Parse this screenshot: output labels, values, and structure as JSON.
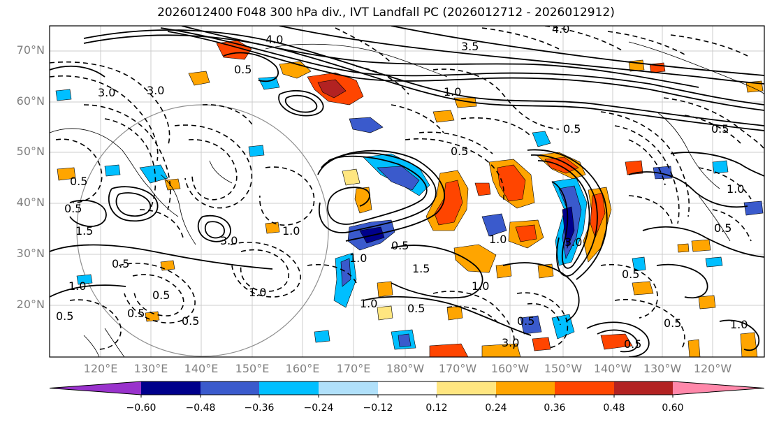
{
  "title": "2026012400 F048 300 hPa div., IVT Landfall PC (2026012712 - 2026012912)",
  "lat_ticks": [
    "70°N",
    "60°N",
    "50°N",
    "40°N",
    "30°N",
    "20°N"
  ],
  "lon_ticks": [
    "120°E",
    "130°E",
    "140°E",
    "150°E",
    "160°E",
    "170°E",
    "180°W",
    "170°W",
    "160°W",
    "150°W",
    "140°W",
    "130°W",
    "120°W"
  ],
  "colorbar": {
    "labels": [
      "−0.60",
      "−0.48",
      "−0.36",
      "−0.24",
      "−0.12",
      "0.12",
      "0.24",
      "0.36",
      "0.48",
      "0.60"
    ],
    "colors": [
      "#9932cc",
      "#00008b",
      "#3a5acc",
      "#00bfff",
      "#b0e0fa",
      "#ffffff",
      "#ffe680",
      "#ffa500",
      "#ff4500",
      "#b22222",
      "#ff88aa"
    ]
  },
  "contour_labels": [
    "4.0",
    "3.0",
    "3.5",
    "0.5",
    "1.0",
    "1.5",
    "3.0",
    "0.5",
    "0.5",
    "1.0",
    "0.5",
    "1.5",
    "1.0",
    "0.5",
    "3.0",
    "1.0",
    "0.5",
    "0.5",
    "1.0",
    "3.0",
    "0.5",
    "1.0",
    "0.5",
    "0.5",
    "0.5",
    "1.0",
    "3.0",
    "0.5",
    "0.5",
    "0.5",
    "1.0",
    "0.5",
    "0.5",
    "1.0",
    "4.0",
    "0.5",
    "0.5"
  ],
  "contour_label_legacy": "1.0"
}
